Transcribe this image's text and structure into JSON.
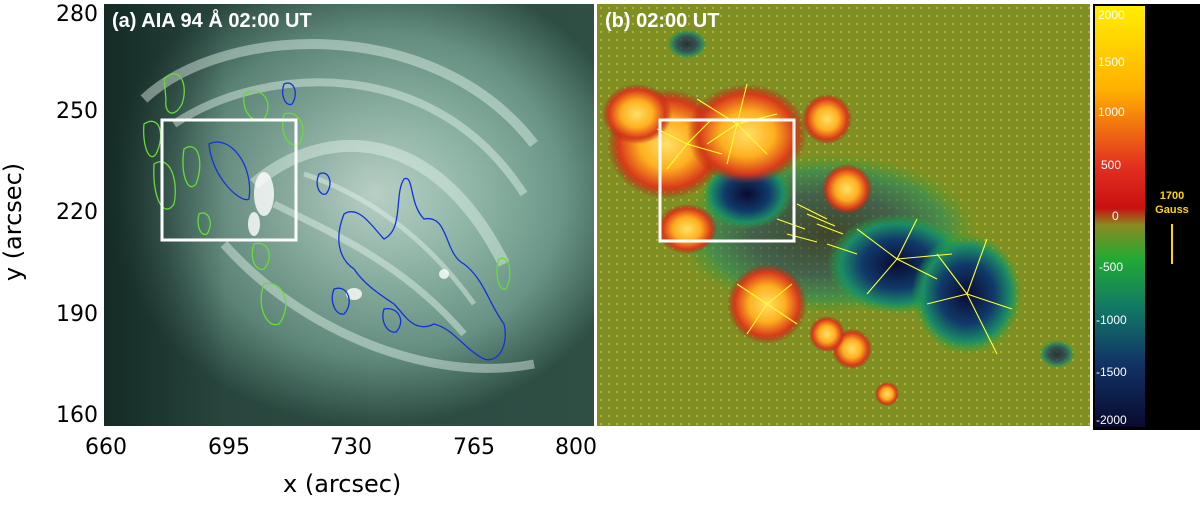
{
  "panel_a": {
    "title": "(a) AIA 94 Å 02:00 UT",
    "x_label": "x (arcsec)",
    "y_label": "y (arcsec)",
    "x_ticks": [
      "660",
      "695",
      "730",
      "765",
      "800"
    ],
    "y_ticks": [
      "280",
      "250",
      "220",
      "190",
      "160"
    ],
    "colors": {
      "positive_contour": "#66dd33",
      "negative_contour": "#1133dd",
      "box": "#ffffff",
      "background": "#5f8f80"
    }
  },
  "panel_b": {
    "title": "(b) 02:00 UT",
    "colors": {
      "background": "#7f8f24",
      "positive": "#ffcc22",
      "negative": "#10103a",
      "vectors": "#ffff00",
      "box": "#ffffff"
    }
  },
  "colorbar": {
    "ticks": [
      "2000",
      "1500",
      "1000",
      "500",
      "0",
      "-500",
      "-1000",
      "-1500",
      "-2000"
    ],
    "scale_value": "1700",
    "scale_unit": "Gauss",
    "colors": [
      "#ffee00",
      "#ffb000",
      "#e33020",
      "#c81010",
      "#8a8a20",
      "#22aa33",
      "#117766",
      "#113366",
      "#0a0a30"
    ]
  }
}
